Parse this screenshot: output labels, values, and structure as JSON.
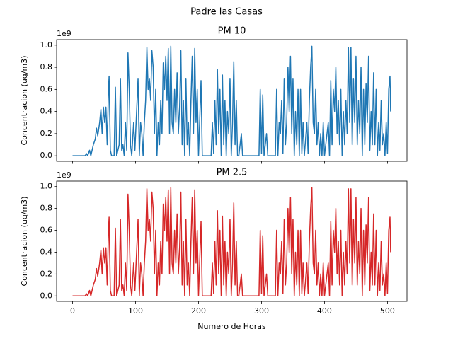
{
  "title": "Padre las Casas",
  "chart_data": [
    {
      "type": "line",
      "title": "PM 10",
      "ylabel": "Concentracion (ug/m3)",
      "offset_label": "1e9",
      "xlim": [
        -25.3,
        531
      ],
      "ylim": [
        -0.05,
        1.05
      ],
      "xticks": [
        0,
        100,
        200,
        300,
        400,
        500
      ],
      "yticks": [
        {
          "value": 0,
          "label": "0.0"
        },
        {
          "value": 0.2,
          "label": "0.2"
        },
        {
          "value": 0.4,
          "label": "0.4"
        },
        {
          "value": 0.6,
          "label": "0.6"
        },
        {
          "value": 0.8,
          "label": "0.8"
        },
        {
          "value": 1,
          "label": "1.0"
        }
      ],
      "x": [
        0,
        20,
        22,
        24,
        27,
        29,
        33,
        36,
        38,
        40,
        43,
        45,
        47,
        49,
        51,
        53,
        55,
        57,
        58,
        60,
        62,
        66,
        68,
        70,
        74,
        76,
        78,
        80,
        82,
        84,
        86,
        88,
        90,
        92,
        94,
        97,
        99,
        104,
        106,
        108,
        110,
        112,
        114,
        116,
        118,
        120,
        122,
        124,
        126,
        128,
        130,
        132,
        134,
        136,
        138,
        140,
        142,
        144,
        146,
        148,
        150,
        152,
        154,
        156,
        158,
        160,
        162,
        164,
        166,
        168,
        170,
        172,
        174,
        176,
        178,
        180,
        182,
        184,
        186,
        188,
        190,
        192,
        194,
        196,
        198,
        200,
        204,
        206,
        210,
        220,
        222,
        224,
        226,
        228,
        230,
        232,
        234,
        236,
        238,
        240,
        242,
        244,
        246,
        248,
        250,
        252,
        254,
        256,
        258,
        260,
        262,
        264,
        268,
        270,
        296,
        298,
        300,
        302,
        304,
        306,
        308,
        310,
        322,
        324,
        326,
        328,
        330,
        332,
        334,
        336,
        338,
        340,
        342,
        344,
        346,
        348,
        350,
        352,
        354,
        356,
        358,
        360,
        362,
        364,
        366,
        368,
        372,
        374,
        376,
        378,
        380,
        382,
        384,
        386,
        388,
        390,
        392,
        394,
        396,
        398,
        400,
        402,
        404,
        406,
        408,
        410,
        412,
        414,
        416,
        418,
        420,
        422,
        424,
        426,
        428,
        430,
        432,
        434,
        436,
        438,
        440,
        442,
        444,
        446,
        448,
        450,
        452,
        454,
        456,
        458,
        460,
        462,
        464,
        466,
        468,
        470,
        472,
        474,
        476,
        478,
        480,
        482,
        484,
        486,
        488,
        490,
        492,
        494,
        496,
        498,
        500,
        502,
        504,
        505
      ],
      "series": [
        {
          "color": "#1f77b4",
          "values": [
            0,
            0,
            0.02,
            0,
            0.05,
            0,
            0.1,
            0.15,
            0.25,
            0.18,
            0.3,
            0.42,
            0.2,
            0.44,
            0.3,
            0.44,
            0.1,
            0.6,
            0.72,
            0.05,
            0,
            0,
            0.62,
            0,
            0.1,
            0.7,
            0.05,
            0.1,
            0,
            0.3,
            0.05,
            0.93,
            0.6,
            0.1,
            0,
            0.3,
            0.05,
            0.7,
            0,
            0.3,
            0.2,
            0,
            0.3,
            0.5,
            0.98,
            0.6,
            0.7,
            0.5,
            0.95,
            0.8,
            0.2,
            0.6,
            0,
            0.3,
            0.1,
            0.5,
            0.2,
            0.84,
            0.6,
            0.9,
            0.5,
            0.97,
            0.2,
            0.99,
            0.3,
            0.2,
            0.6,
            0.3,
            0.75,
            0.2,
            0.45,
            0.95,
            0.1,
            0.5,
            0,
            0.7,
            0.1,
            0.3,
            0,
            0.5,
            0.9,
            0.2,
            0.97,
            0.3,
            0.6,
            0,
            0.68,
            0,
            0,
            0,
            0.3,
            0.02,
            0.5,
            0.1,
            0.78,
            0.2,
            0.6,
            0,
            0.73,
            0.1,
            0.5,
            0,
            0.4,
            0.2,
            0.7,
            0,
            0.3,
            0.85,
            0.1,
            0.5,
            0,
            0,
            0.2,
            0,
            0,
            0.6,
            0.02,
            0.55,
            0,
            0.1,
            0.2,
            0,
            0,
            0.6,
            0,
            0.3,
            0.2,
            0.5,
            0.02,
            0.7,
            0.1,
            0.3,
            0.8,
            0.4,
            0.9,
            0.2,
            0.7,
            0,
            0.4,
            0.1,
            0.6,
            0,
            0.6,
            0.02,
            0.3,
            0,
            0.3,
            0.02,
            0.5,
            0.8,
            0.99,
            0.3,
            0.2,
            0.6,
            0.1,
            0.3,
            0,
            0.2,
            0,
            0.3,
            0,
            0.1,
            0.2,
            0.3,
            0,
            0.68,
            0.1,
            0.6,
            0.4,
            0.8,
            0.2,
            0.5,
            0.1,
            0.6,
            0,
            0.4,
            0.1,
            0.5,
            0.2,
            0.98,
            0.3,
            0.98,
            0.1,
            0.7,
            0.3,
            0.9,
            0.1,
            0.5,
            0.2,
            0.8,
            0,
            0.6,
            0.1,
            0.65,
            0.3,
            0.9,
            0.05,
            0.4,
            0.1,
            0.75,
            0.1,
            0.6,
            0,
            0.3,
            0.05,
            0.5,
            0.1,
            0.2,
            0,
            0.3,
            0.02,
            0.6,
            0.72,
            0.4
          ]
        }
      ]
    },
    {
      "type": "line",
      "title": "PM 2.5",
      "ylabel": "Concentracion (ug/m3)",
      "xlabel": "Numero de Horas",
      "offset_label": "1e9",
      "xlim": [
        -25.3,
        531
      ],
      "ylim": [
        -0.05,
        1.05
      ],
      "xticks": [
        0,
        100,
        200,
        300,
        400,
        500
      ],
      "yticks": [
        {
          "value": 0,
          "label": "0.0"
        },
        {
          "value": 0.2,
          "label": "0.2"
        },
        {
          "value": 0.4,
          "label": "0.4"
        },
        {
          "value": 0.6,
          "label": "0.6"
        },
        {
          "value": 0.8,
          "label": "0.8"
        },
        {
          "value": 1,
          "label": "1.0"
        }
      ],
      "x": [
        0,
        20,
        22,
        24,
        27,
        29,
        33,
        36,
        38,
        40,
        43,
        45,
        47,
        49,
        51,
        53,
        55,
        57,
        58,
        60,
        62,
        66,
        68,
        70,
        74,
        76,
        78,
        80,
        82,
        84,
        86,
        88,
        90,
        92,
        94,
        97,
        99,
        104,
        106,
        108,
        110,
        112,
        114,
        116,
        118,
        120,
        122,
        124,
        126,
        128,
        130,
        132,
        134,
        136,
        138,
        140,
        142,
        144,
        146,
        148,
        150,
        152,
        154,
        156,
        158,
        160,
        162,
        164,
        166,
        168,
        170,
        172,
        174,
        176,
        178,
        180,
        182,
        184,
        186,
        188,
        190,
        192,
        194,
        196,
        198,
        200,
        204,
        206,
        210,
        220,
        222,
        224,
        226,
        228,
        230,
        232,
        234,
        236,
        238,
        240,
        242,
        244,
        246,
        248,
        250,
        252,
        254,
        256,
        258,
        260,
        262,
        264,
        268,
        270,
        296,
        298,
        300,
        302,
        304,
        306,
        308,
        310,
        322,
        324,
        326,
        328,
        330,
        332,
        334,
        336,
        338,
        340,
        342,
        344,
        346,
        348,
        350,
        352,
        354,
        356,
        358,
        360,
        362,
        364,
        366,
        368,
        372,
        374,
        376,
        378,
        380,
        382,
        384,
        386,
        388,
        390,
        392,
        394,
        396,
        398,
        400,
        402,
        404,
        406,
        408,
        410,
        412,
        414,
        416,
        418,
        420,
        422,
        424,
        426,
        428,
        430,
        432,
        434,
        436,
        438,
        440,
        442,
        444,
        446,
        448,
        450,
        452,
        454,
        456,
        458,
        460,
        462,
        464,
        466,
        468,
        470,
        472,
        474,
        476,
        478,
        480,
        482,
        484,
        486,
        488,
        490,
        492,
        494,
        496,
        498,
        500,
        502,
        504,
        505
      ],
      "series": [
        {
          "color": "#d62728",
          "values": [
            0,
            0,
            0.02,
            0,
            0.05,
            0,
            0.1,
            0.15,
            0.25,
            0.18,
            0.3,
            0.42,
            0.2,
            0.44,
            0.3,
            0.44,
            0.1,
            0.6,
            0.72,
            0.05,
            0,
            0,
            0.62,
            0,
            0.1,
            0.7,
            0.05,
            0.1,
            0,
            0.3,
            0.05,
            0.93,
            0.6,
            0.1,
            0,
            0.3,
            0.05,
            0.7,
            0,
            0.3,
            0.2,
            0,
            0.3,
            0.5,
            0.98,
            0.6,
            0.7,
            0.5,
            0.95,
            0.8,
            0.2,
            0.6,
            0,
            0.3,
            0.1,
            0.5,
            0.2,
            0.84,
            0.6,
            0.9,
            0.5,
            0.97,
            0.2,
            0.99,
            0.3,
            0.2,
            0.6,
            0.3,
            0.75,
            0.2,
            0.45,
            0.95,
            0.1,
            0.5,
            0,
            0.7,
            0.1,
            0.3,
            0,
            0.5,
            0.9,
            0.2,
            0.97,
            0.3,
            0.6,
            0,
            0.68,
            0,
            0,
            0,
            0.3,
            0.02,
            0.5,
            0.1,
            0.78,
            0.2,
            0.6,
            0,
            0.73,
            0.1,
            0.5,
            0,
            0.4,
            0.2,
            0.7,
            0,
            0.3,
            0.85,
            0.1,
            0.5,
            0,
            0,
            0.2,
            0,
            0,
            0.6,
            0.02,
            0.55,
            0,
            0.1,
            0.2,
            0,
            0,
            0.6,
            0,
            0.3,
            0.2,
            0.5,
            0.02,
            0.7,
            0.1,
            0.3,
            0.8,
            0.4,
            0.9,
            0.2,
            0.7,
            0,
            0.4,
            0.1,
            0.6,
            0,
            0.6,
            0.02,
            0.3,
            0,
            0.3,
            0.02,
            0.5,
            0.8,
            0.99,
            0.3,
            0.2,
            0.6,
            0.1,
            0.3,
            0,
            0.2,
            0,
            0.3,
            0,
            0.1,
            0.2,
            0.3,
            0,
            0.68,
            0.1,
            0.6,
            0.4,
            0.8,
            0.2,
            0.5,
            0.1,
            0.6,
            0,
            0.4,
            0.1,
            0.5,
            0.2,
            0.98,
            0.3,
            0.98,
            0.1,
            0.7,
            0.3,
            0.9,
            0.1,
            0.5,
            0.2,
            0.8,
            0,
            0.6,
            0.1,
            0.65,
            0.3,
            0.9,
            0.05,
            0.4,
            0.1,
            0.75,
            0.1,
            0.6,
            0,
            0.3,
            0.05,
            0.5,
            0.1,
            0.2,
            0,
            0.3,
            0.02,
            0.6,
            0.72,
            0.4
          ]
        }
      ]
    }
  ]
}
